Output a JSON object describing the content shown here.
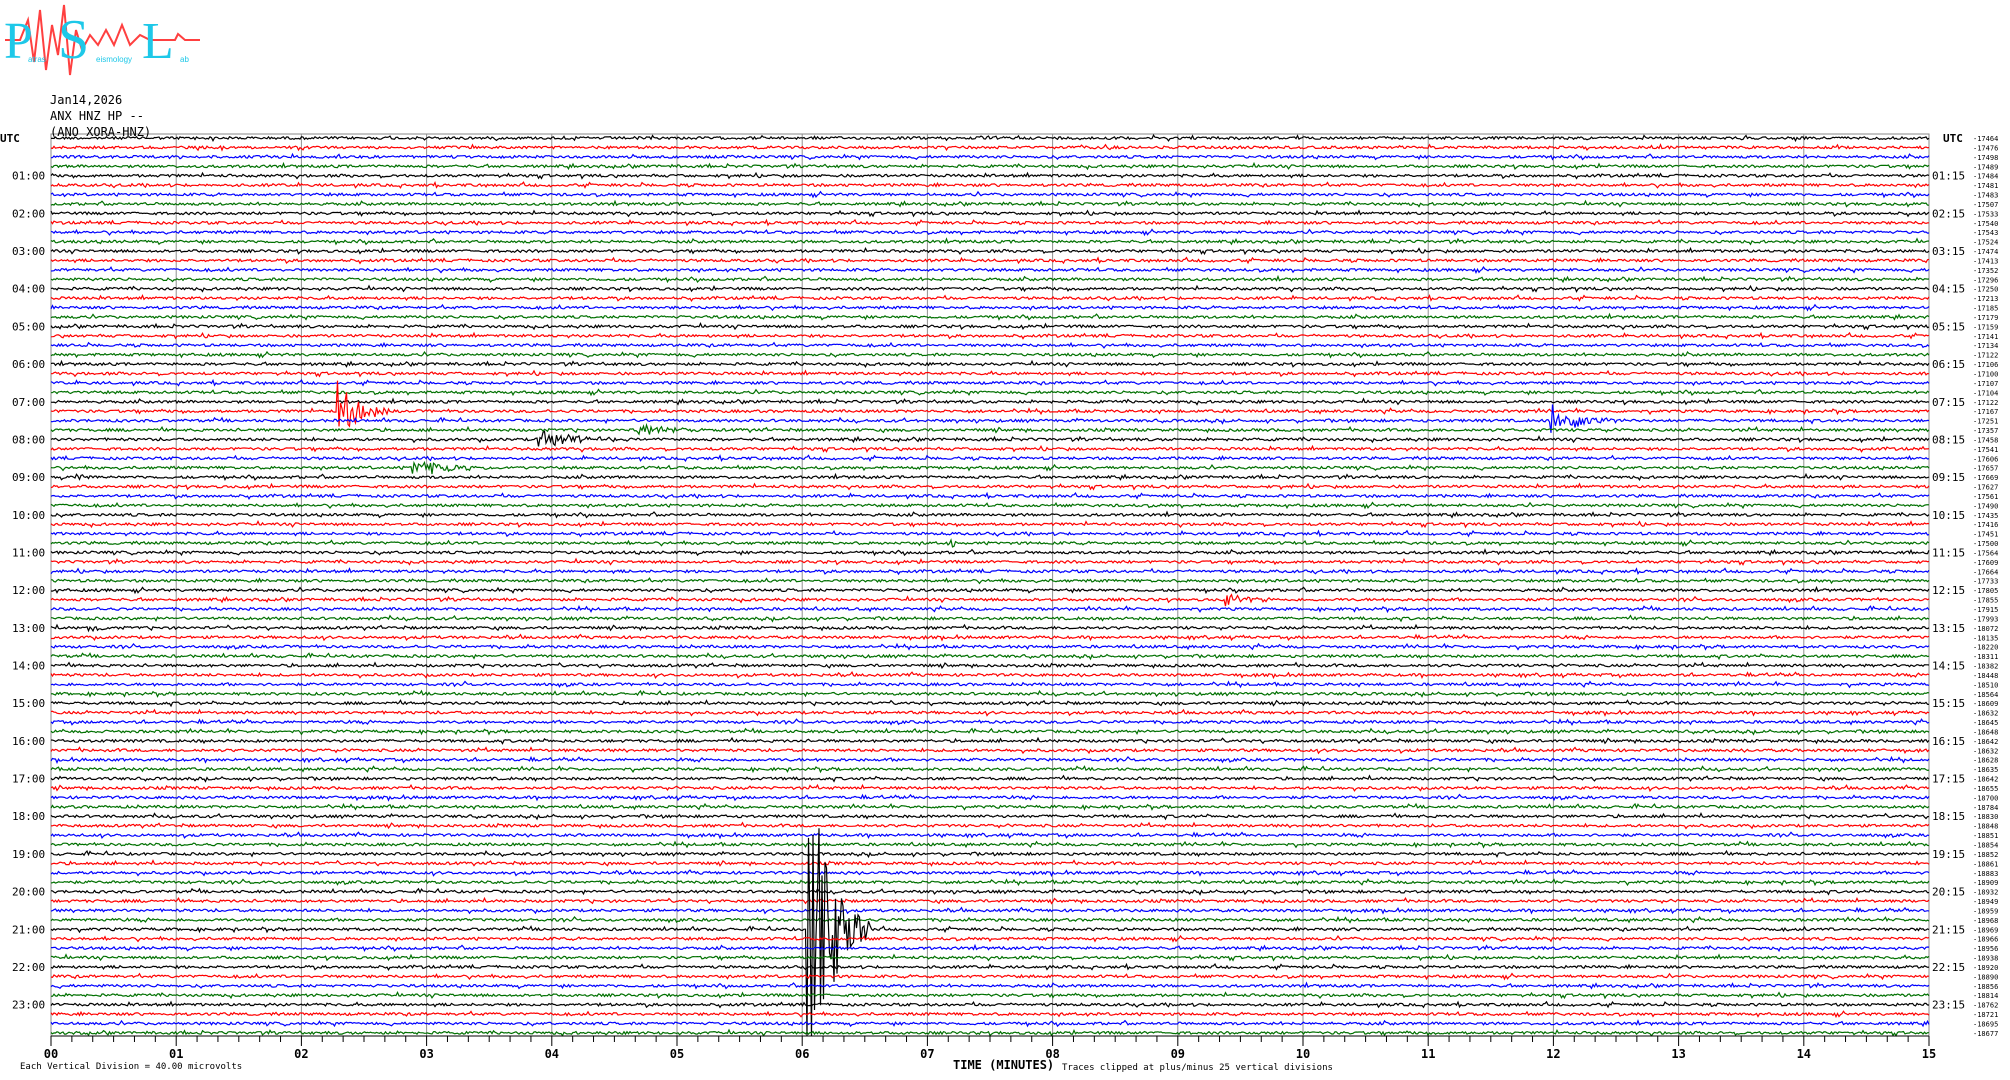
{
  "logo": {
    "text": "Patras Seismology Lab",
    "colors": {
      "letters": "#1ec8e8",
      "wave": "#ff3030"
    }
  },
  "header": {
    "date": "Jan14,2026",
    "station": "ANX HNZ HP --",
    "channel": "(ANO XORA-HNZ)"
  },
  "chart_data": {
    "type": "line",
    "title": "",
    "xlabel": "TIME (MINUTES)",
    "xlim": [
      0,
      15
    ],
    "x_ticks": [
      "00",
      "01",
      "02",
      "03",
      "04",
      "05",
      "06",
      "07",
      "08",
      "09",
      "10",
      "11",
      "12",
      "13",
      "14",
      "15"
    ],
    "left_axis_label": "UTC",
    "right_axis_label": "UTC",
    "left_hour_labels": [
      "01:00",
      "02:00",
      "03:00",
      "04:00",
      "05:00",
      "06:00",
      "07:00",
      "08:00",
      "09:00",
      "10:00",
      "11:00",
      "12:00",
      "13:00",
      "14:00",
      "15:00",
      "16:00",
      "17:00",
      "18:00",
      "19:00",
      "20:00",
      "21:00",
      "22:00",
      "23:00"
    ],
    "right_hour_labels": [
      "01:15",
      "02:15",
      "03:15",
      "04:15",
      "05:15",
      "06:15",
      "07:15",
      "08:15",
      "09:15",
      "10:15",
      "11:15",
      "12:15",
      "13:15",
      "14:15",
      "15:15",
      "16:15",
      "17:15",
      "18:15",
      "19:15",
      "20:15",
      "21:15",
      "22:15",
      "23:15"
    ],
    "trace_colors": [
      "#000000",
      "#ff0000",
      "#0000ff",
      "#007000"
    ],
    "grid": true,
    "trace_offsets": [
      -17464,
      -17476,
      -17498,
      -17489,
      -17484,
      -17481,
      -17483,
      -17507,
      -17533,
      -17540,
      -17543,
      -17524,
      -17474,
      -17413,
      -17352,
      -17296,
      -17250,
      -17213,
      -17185,
      -17179,
      -17159,
      -17141,
      -17134,
      -17122,
      -17106,
      -17100,
      -17107,
      -17104,
      -17122,
      -17167,
      -17251,
      -17357,
      -17458,
      -17541,
      -17606,
      -17657,
      -17669,
      -17627,
      -17561,
      -17490,
      -17435,
      -17416,
      -17451,
      -17500,
      -17564,
      -17609,
      -17664,
      -17733,
      -17805,
      -17855,
      -17915,
      -17993,
      -18072,
      -18135,
      -18220,
      -18311,
      -18382,
      -18448,
      -18510,
      -18564,
      -18609,
      -18632,
      -18645,
      -18648,
      -18642,
      -18632,
      -18628,
      -18635,
      -18642,
      -18655,
      -18700,
      -18784,
      -18830,
      -18848,
      -18851,
      -18854,
      -18852,
      -18861,
      -18883,
      -18909,
      -18932,
      -18949,
      -18959,
      -18968,
      -18969,
      -18966,
      -18956,
      -18938,
      -18920,
      -18890,
      -18856,
      -18814,
      -18762,
      -18721,
      -18695,
      -18677
    ],
    "events": [
      {
        "row": 29,
        "minute": 2.3,
        "amplitude": 7,
        "duration": 0.4
      },
      {
        "row": 31,
        "minute": 4.7,
        "amplitude": 1.5,
        "duration": 0.6
      },
      {
        "row": 32,
        "minute": 3.9,
        "amplitude": 2.5,
        "duration": 0.8
      },
      {
        "row": 35,
        "minute": 2.9,
        "amplitude": 2,
        "duration": 0.8
      },
      {
        "row": 30,
        "minute": 12.0,
        "amplitude": 4,
        "duration": 0.6
      },
      {
        "row": 36,
        "minute": 0.2,
        "amplitude": 1,
        "duration": 0.2
      },
      {
        "row": 43,
        "minute": 7.2,
        "amplitude": 1,
        "duration": 0.2
      },
      {
        "row": 49,
        "minute": 9.4,
        "amplitude": 2,
        "duration": 0.3
      },
      {
        "row": 52,
        "minute": 0.3,
        "amplitude": 1,
        "duration": 0.2
      },
      {
        "row": 84,
        "minute": 6.05,
        "amplitude": 40,
        "duration": 0.5
      }
    ],
    "footer_left": "Each Vertical Division =   40.00 microvolts",
    "footer_right": "Traces clipped at plus/minus 25 vertical divisions"
  }
}
